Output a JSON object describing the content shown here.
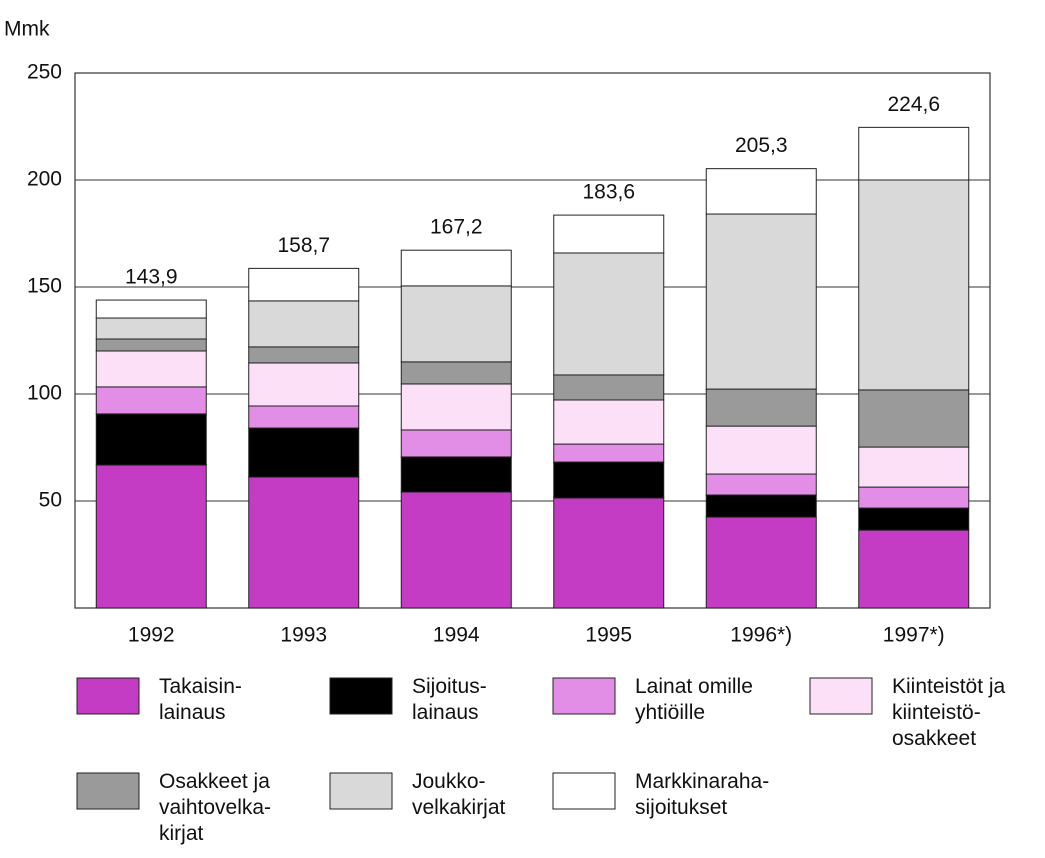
{
  "chart_data": {
    "type": "stacked_bar",
    "y_unit": "Mmk",
    "categories": [
      "1992",
      "1993",
      "1994",
      "1995",
      "1996*)",
      "1997*)"
    ],
    "series": [
      {
        "name": "Takaisin-\nlainaus",
        "color": "#c33cc3",
        "values": [
          66.8,
          61.2,
          54.2,
          51.4,
          42.5,
          36.4
        ]
      },
      {
        "name": "Sijoitus-\nlainaus",
        "color": "#000000",
        "values": [
          23.9,
          22.9,
          16.4,
          16.8,
          10.3,
          10.3
        ]
      },
      {
        "name": "Lainat omille\nyhtiöille",
        "color": "#e28de6",
        "values": [
          12.6,
          10.3,
          12.6,
          8.4,
          9.8,
          9.8
        ]
      },
      {
        "name": "Kiinteistöt ja\nkiinteistö-\nosakkeet",
        "color": "#fce0f8",
        "values": [
          16.8,
          20.1,
          21.5,
          20.6,
          22.4,
          18.7
        ]
      },
      {
        "name": "Osakkeet ja\nvaihtovelka-\nkirjat",
        "color": "#9a9a9a",
        "values": [
          5.6,
          7.5,
          10.3,
          11.7,
          17.3,
          26.7
        ]
      },
      {
        "name": "Joukko-\nvelkakirjat",
        "color": "#d9d9d9",
        "values": [
          9.8,
          21.5,
          35.5,
          57.0,
          81.8,
          98.1
        ]
      },
      {
        "name": "Markkinaraha-\nsijoitukset",
        "color": "#ffffff",
        "values": [
          8.4,
          15.2,
          16.7,
          17.7,
          21.2,
          24.6
        ]
      }
    ],
    "totals": [
      143.9,
      158.7,
      167.2,
      183.6,
      205.3,
      224.6
    ],
    "total_labels": [
      "143,9",
      "158,7",
      "167,2",
      "183,6",
      "205,3",
      "224,6"
    ],
    "ylim": [
      0,
      250
    ],
    "yticks": [
      50,
      100,
      150,
      200,
      250
    ],
    "grid": true
  }
}
